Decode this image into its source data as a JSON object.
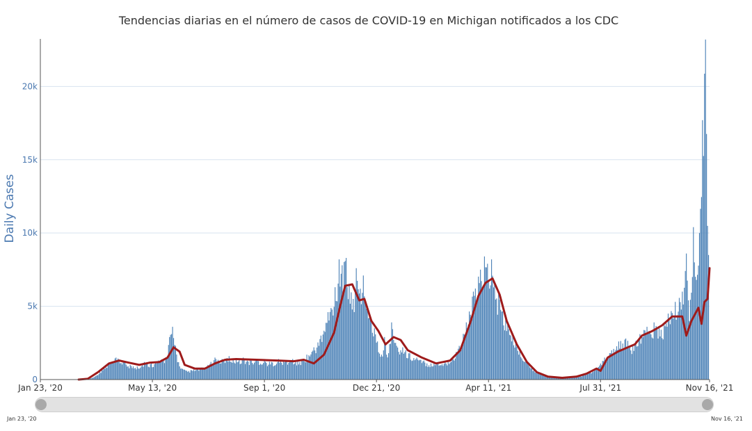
{
  "title": "Tendencias diarias en el número de casos de COVID-19 en Michigan notificados a los CDC",
  "range_slider": {
    "start_label": "Jan 23, '20",
    "end_label": "Nov 16, '21"
  },
  "colors": {
    "bars": "#4f84b8",
    "moving_average": "#9e1b1b",
    "axis_text": "#4a78b0",
    "grid": "#d7e3ef"
  },
  "chart_data": {
    "type": "bar",
    "title": "Tendencias diarias en el número de casos de COVID-19 en Michigan notificados a los CDC",
    "ylabel": "Daily Cases",
    "xlabel": "",
    "ylim": [
      0,
      24000
    ],
    "xlim": [
      "2020-01-23",
      "2021-11-16"
    ],
    "yticks": [
      0,
      5000,
      10000,
      15000,
      20000
    ],
    "ytick_labels": [
      "0",
      "5k",
      "10k",
      "15k",
      "20k"
    ],
    "xticks": [
      "2020-01-23",
      "2020-05-13",
      "2020-09-01",
      "2020-12-21",
      "2021-04-11",
      "2021-07-31",
      "2021-11-16"
    ],
    "xtick_labels": [
      "Jan 23, '20",
      "May 13, '20",
      "Sep 1, '20",
      "Dec 21, '20",
      "Apr 11, '21",
      "Jul 31, '21",
      "Nov 16, '21"
    ],
    "grid": true,
    "series": [
      {
        "type": "bar",
        "daily_cases": [
          [
            "2020-03-10",
            20
          ],
          [
            "2020-03-17",
            200
          ],
          [
            "2020-03-24",
            700
          ],
          [
            "2020-03-31",
            1100
          ],
          [
            "2020-04-07",
            1500
          ],
          [
            "2020-04-14",
            1300
          ],
          [
            "2020-04-21",
            1000
          ],
          [
            "2020-04-28",
            900
          ],
          [
            "2020-05-05",
            1200
          ],
          [
            "2020-05-12",
            1100
          ],
          [
            "2020-05-19",
            1300
          ],
          [
            "2020-05-26",
            1500
          ],
          [
            "2020-05-30",
            2900
          ],
          [
            "2020-06-02",
            3600
          ],
          [
            "2020-06-05",
            2300
          ],
          [
            "2020-06-09",
            900
          ],
          [
            "2020-06-16",
            600
          ],
          [
            "2020-06-23",
            700
          ],
          [
            "2020-06-30",
            800
          ],
          [
            "2020-07-07",
            1000
          ],
          [
            "2020-07-14",
            1500
          ],
          [
            "2020-07-21",
            1400
          ],
          [
            "2020-07-28",
            1600
          ],
          [
            "2020-08-04",
            1400
          ],
          [
            "2020-08-11",
            1500
          ],
          [
            "2020-08-18",
            1300
          ],
          [
            "2020-08-25",
            1400
          ],
          [
            "2020-09-01",
            1300
          ],
          [
            "2020-09-08",
            1200
          ],
          [
            "2020-09-15",
            1400
          ],
          [
            "2020-09-22",
            1300
          ],
          [
            "2020-09-29",
            1400
          ],
          [
            "2020-10-06",
            1200
          ],
          [
            "2020-10-13",
            1700
          ],
          [
            "2020-10-20",
            2200
          ],
          [
            "2020-10-27",
            3000
          ],
          [
            "2020-11-03",
            4600
          ],
          [
            "2020-11-10",
            6300
          ],
          [
            "2020-11-14",
            8200
          ],
          [
            "2020-11-17",
            7800
          ],
          [
            "2020-11-21",
            8300
          ],
          [
            "2020-11-24",
            6500
          ],
          [
            "2020-11-28",
            5500
          ],
          [
            "2020-12-01",
            7600
          ],
          [
            "2020-12-05",
            6200
          ],
          [
            "2020-12-08",
            7100
          ],
          [
            "2020-12-12",
            5000
          ],
          [
            "2020-12-15",
            4300
          ],
          [
            "2020-12-19",
            3500
          ],
          [
            "2020-12-22",
            2600
          ],
          [
            "2020-12-26",
            1700
          ],
          [
            "2020-12-29",
            2900
          ],
          [
            "2021-01-02",
            1800
          ],
          [
            "2021-01-05",
            3900
          ],
          [
            "2021-01-09",
            2500
          ],
          [
            "2021-01-16",
            2200
          ],
          [
            "2021-01-23",
            1800
          ],
          [
            "2021-01-30",
            1500
          ],
          [
            "2021-02-06",
            1300
          ],
          [
            "2021-02-13",
            1100
          ],
          [
            "2021-02-20",
            1200
          ],
          [
            "2021-02-27",
            1200
          ],
          [
            "2021-03-06",
            1500
          ],
          [
            "2021-03-13",
            2300
          ],
          [
            "2021-03-20",
            3900
          ],
          [
            "2021-03-27",
            6000
          ],
          [
            "2021-04-03",
            7500
          ],
          [
            "2021-04-07",
            8400
          ],
          [
            "2021-04-10",
            7900
          ],
          [
            "2021-04-14",
            8200
          ],
          [
            "2021-04-17",
            6600
          ],
          [
            "2021-04-21",
            5900
          ],
          [
            "2021-04-28",
            4200
          ],
          [
            "2021-05-05",
            3000
          ],
          [
            "2021-05-12",
            2100
          ],
          [
            "2021-05-19",
            1300
          ],
          [
            "2021-05-26",
            700
          ],
          [
            "2021-06-02",
            400
          ],
          [
            "2021-06-09",
            250
          ],
          [
            "2021-06-16",
            180
          ],
          [
            "2021-06-23",
            150
          ],
          [
            "2021-06-30",
            150
          ],
          [
            "2021-07-07",
            200
          ],
          [
            "2021-07-14",
            300
          ],
          [
            "2021-07-21",
            550
          ],
          [
            "2021-07-28",
            800
          ],
          [
            "2021-08-04",
            1500
          ],
          [
            "2021-08-11",
            2000
          ],
          [
            "2021-08-18",
            2600
          ],
          [
            "2021-08-25",
            2800
          ],
          [
            "2021-09-01",
            2300
          ],
          [
            "2021-09-08",
            3100
          ],
          [
            "2021-09-15",
            3600
          ],
          [
            "2021-09-22",
            3900
          ],
          [
            "2021-09-29",
            3400
          ],
          [
            "2021-10-06",
            4500
          ],
          [
            "2021-10-13",
            5300
          ],
          [
            "2021-10-20",
            6000
          ],
          [
            "2021-10-24",
            8600
          ],
          [
            "2021-10-27",
            4000
          ],
          [
            "2021-10-31",
            10400
          ],
          [
            "2021-11-03",
            6800
          ],
          [
            "2021-11-06",
            10000
          ],
          [
            "2021-11-09",
            17700
          ],
          [
            "2021-11-12",
            23200
          ],
          [
            "2021-11-15",
            8500
          ]
        ]
      },
      {
        "type": "line",
        "moving_average": [
          [
            "2020-03-01",
            0
          ],
          [
            "2020-03-10",
            50
          ],
          [
            "2020-03-20",
            500
          ],
          [
            "2020-03-31",
            1100
          ],
          [
            "2020-04-10",
            1300
          ],
          [
            "2020-04-20",
            1150
          ],
          [
            "2020-04-30",
            1000
          ],
          [
            "2020-05-10",
            1150
          ],
          [
            "2020-05-20",
            1200
          ],
          [
            "2020-05-28",
            1500
          ],
          [
            "2020-06-03",
            2200
          ],
          [
            "2020-06-09",
            1900
          ],
          [
            "2020-06-14",
            1000
          ],
          [
            "2020-06-24",
            750
          ],
          [
            "2020-07-04",
            750
          ],
          [
            "2020-07-14",
            1100
          ],
          [
            "2020-07-24",
            1350
          ],
          [
            "2020-08-04",
            1400
          ],
          [
            "2020-08-24",
            1350
          ],
          [
            "2020-09-14",
            1300
          ],
          [
            "2020-09-30",
            1250
          ],
          [
            "2020-10-10",
            1350
          ],
          [
            "2020-10-20",
            1100
          ],
          [
            "2020-10-30",
            1700
          ],
          [
            "2020-11-09",
            3200
          ],
          [
            "2020-11-15",
            5000
          ],
          [
            "2020-11-20",
            6400
          ],
          [
            "2020-11-27",
            6500
          ],
          [
            "2020-12-04",
            5400
          ],
          [
            "2020-12-09",
            5500
          ],
          [
            "2020-12-16",
            4000
          ],
          [
            "2020-12-23",
            3300
          ],
          [
            "2020-12-30",
            2400
          ],
          [
            "2021-01-07",
            2900
          ],
          [
            "2021-01-14",
            2700
          ],
          [
            "2021-01-21",
            2000
          ],
          [
            "2021-02-04",
            1500
          ],
          [
            "2021-02-18",
            1100
          ],
          [
            "2021-03-04",
            1300
          ],
          [
            "2021-03-14",
            2000
          ],
          [
            "2021-03-24",
            3900
          ],
          [
            "2021-04-01",
            5700
          ],
          [
            "2021-04-08",
            6600
          ],
          [
            "2021-04-15",
            6900
          ],
          [
            "2021-04-22",
            5800
          ],
          [
            "2021-04-29",
            4000
          ],
          [
            "2021-05-09",
            2400
          ],
          [
            "2021-05-19",
            1200
          ],
          [
            "2021-05-29",
            500
          ],
          [
            "2021-06-09",
            200
          ],
          [
            "2021-06-23",
            120
          ],
          [
            "2021-07-07",
            200
          ],
          [
            "2021-07-17",
            400
          ],
          [
            "2021-07-27",
            750
          ],
          [
            "2021-07-31",
            600
          ],
          [
            "2021-08-07",
            1500
          ],
          [
            "2021-08-17",
            1900
          ],
          [
            "2021-08-27",
            2200
          ],
          [
            "2021-09-03",
            2400
          ],
          [
            "2021-09-10",
            3000
          ],
          [
            "2021-09-20",
            3300
          ],
          [
            "2021-09-30",
            3700
          ],
          [
            "2021-10-10",
            4300
          ],
          [
            "2021-10-20",
            4300
          ],
          [
            "2021-10-24",
            3000
          ],
          [
            "2021-10-29",
            4000
          ],
          [
            "2021-11-05",
            4900
          ],
          [
            "2021-11-08",
            3800
          ],
          [
            "2021-11-11",
            5300
          ],
          [
            "2021-11-14",
            5500
          ],
          [
            "2021-11-16",
            7600
          ]
        ]
      }
    ]
  }
}
